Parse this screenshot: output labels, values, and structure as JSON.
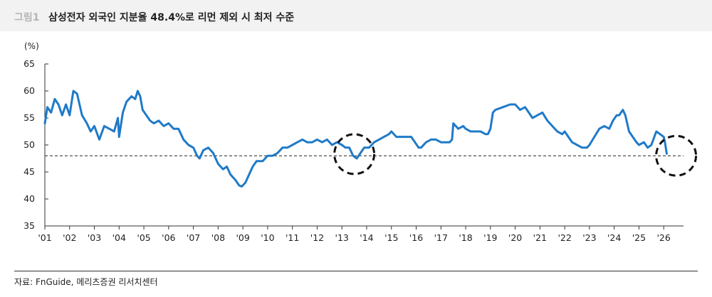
{
  "header": {
    "figure_no": "그림1",
    "title": "삼성전자 외국인 지분율 48.4%로 리먼 제외 시 최저 수준"
  },
  "footer": {
    "source": "자료: FnGuide, 메리츠증권 리서치센터"
  },
  "colors": {
    "series": "#1f7ac8",
    "reference": "#222222",
    "axis": "#333333",
    "highlight": "#111111"
  },
  "chart_data": {
    "type": "line",
    "ylabel": "(%)",
    "ylim": [
      35,
      65
    ],
    "yticks": [
      35,
      40,
      45,
      50,
      55,
      60,
      65
    ],
    "xlim": [
      2001,
      2026.8
    ],
    "xtick_labels": [
      "'01",
      "'02",
      "'03",
      "'04",
      "'05",
      "'06",
      "'07",
      "'08",
      "'09",
      "'10",
      "'11",
      "'12",
      "'13",
      "'14",
      "'15",
      "'16",
      "'17",
      "'18",
      "'19",
      "'20",
      "'21",
      "'22",
      "'23",
      "'24",
      "'25",
      "'26"
    ],
    "grid": false,
    "reference_line": {
      "y": 48.0,
      "style": "dashed"
    },
    "highlights": [
      {
        "shape": "dashed-circle",
        "x": 2013.5,
        "y": 48.3
      },
      {
        "shape": "dashed-circle",
        "x": 2026.5,
        "y": 48.0
      }
    ],
    "series": [
      {
        "name": "",
        "points": [
          [
            2001.0,
            54.0
          ],
          [
            2001.1,
            57.0
          ],
          [
            2001.25,
            56.0
          ],
          [
            2001.4,
            58.5
          ],
          [
            2001.55,
            57.5
          ],
          [
            2001.7,
            55.5
          ],
          [
            2001.85,
            57.5
          ],
          [
            2002.0,
            55.5
          ],
          [
            2002.15,
            60.0
          ],
          [
            2002.3,
            59.5
          ],
          [
            2002.5,
            55.5
          ],
          [
            2002.7,
            54.0
          ],
          [
            2002.85,
            52.5
          ],
          [
            2003.0,
            53.5
          ],
          [
            2003.2,
            51.0
          ],
          [
            2003.4,
            53.5
          ],
          [
            2003.6,
            53.0
          ],
          [
            2003.8,
            52.5
          ],
          [
            2003.95,
            55.0
          ],
          [
            2004.0,
            51.5
          ],
          [
            2004.15,
            56.0
          ],
          [
            2004.3,
            58.0
          ],
          [
            2004.5,
            59.0
          ],
          [
            2004.65,
            58.5
          ],
          [
            2004.75,
            60.0
          ],
          [
            2004.85,
            59.0
          ],
          [
            2004.95,
            56.5
          ],
          [
            2005.1,
            55.5
          ],
          [
            2005.25,
            54.5
          ],
          [
            2005.4,
            54.0
          ],
          [
            2005.6,
            54.5
          ],
          [
            2005.8,
            53.5
          ],
          [
            2006.0,
            54.0
          ],
          [
            2006.2,
            53.0
          ],
          [
            2006.4,
            53.0
          ],
          [
            2006.6,
            51.0
          ],
          [
            2006.8,
            50.0
          ],
          [
            2007.0,
            49.5
          ],
          [
            2007.15,
            48.0
          ],
          [
            2007.25,
            47.5
          ],
          [
            2007.4,
            49.0
          ],
          [
            2007.6,
            49.5
          ],
          [
            2007.8,
            48.5
          ],
          [
            2008.0,
            46.5
          ],
          [
            2008.2,
            45.5
          ],
          [
            2008.35,
            46.0
          ],
          [
            2008.5,
            44.5
          ],
          [
            2008.7,
            43.5
          ],
          [
            2008.85,
            42.5
          ],
          [
            2008.95,
            42.3
          ],
          [
            2009.1,
            43.0
          ],
          [
            2009.25,
            44.5
          ],
          [
            2009.4,
            46.0
          ],
          [
            2009.55,
            47.0
          ],
          [
            2009.8,
            47.0
          ],
          [
            2010.0,
            48.0
          ],
          [
            2010.2,
            48.0
          ],
          [
            2010.4,
            48.5
          ],
          [
            2010.6,
            49.5
          ],
          [
            2010.8,
            49.5
          ],
          [
            2011.0,
            50.0
          ],
          [
            2011.2,
            50.5
          ],
          [
            2011.4,
            51.0
          ],
          [
            2011.6,
            50.5
          ],
          [
            2011.8,
            50.5
          ],
          [
            2012.0,
            51.0
          ],
          [
            2012.2,
            50.5
          ],
          [
            2012.4,
            51.0
          ],
          [
            2012.6,
            50.0
          ],
          [
            2012.8,
            50.5
          ],
          [
            2013.0,
            50.0
          ],
          [
            2013.15,
            49.5
          ],
          [
            2013.3,
            49.5
          ],
          [
            2013.45,
            48.0
          ],
          [
            2013.6,
            47.5
          ],
          [
            2013.75,
            48.5
          ],
          [
            2013.9,
            49.5
          ],
          [
            2014.1,
            49.5
          ],
          [
            2014.3,
            50.5
          ],
          [
            2014.5,
            51.0
          ],
          [
            2014.7,
            51.5
          ],
          [
            2014.9,
            52.0
          ],
          [
            2015.0,
            52.5
          ],
          [
            2015.2,
            51.5
          ],
          [
            2015.4,
            51.5
          ],
          [
            2015.6,
            51.5
          ],
          [
            2015.8,
            51.5
          ],
          [
            2015.95,
            50.5
          ],
          [
            2016.1,
            49.5
          ],
          [
            2016.2,
            49.5
          ],
          [
            2016.4,
            50.5
          ],
          [
            2016.6,
            51.0
          ],
          [
            2016.8,
            51.0
          ],
          [
            2017.0,
            50.5
          ],
          [
            2017.2,
            50.5
          ],
          [
            2017.35,
            50.5
          ],
          [
            2017.45,
            51.0
          ],
          [
            2017.5,
            54.0
          ],
          [
            2017.7,
            53.0
          ],
          [
            2017.9,
            53.5
          ],
          [
            2018.0,
            53.0
          ],
          [
            2018.2,
            52.5
          ],
          [
            2018.4,
            52.5
          ],
          [
            2018.6,
            52.5
          ],
          [
            2018.8,
            52.0
          ],
          [
            2018.9,
            52.0
          ],
          [
            2019.0,
            53.0
          ],
          [
            2019.1,
            56.0
          ],
          [
            2019.2,
            56.5
          ],
          [
            2019.5,
            57.0
          ],
          [
            2019.8,
            57.5
          ],
          [
            2020.0,
            57.5
          ],
          [
            2020.2,
            56.5
          ],
          [
            2020.4,
            57.0
          ],
          [
            2020.55,
            56.0
          ],
          [
            2020.7,
            55.0
          ],
          [
            2020.9,
            55.5
          ],
          [
            2021.1,
            56.0
          ],
          [
            2021.3,
            54.5
          ],
          [
            2021.5,
            53.5
          ],
          [
            2021.7,
            52.5
          ],
          [
            2021.9,
            52.0
          ],
          [
            2022.0,
            52.5
          ],
          [
            2022.15,
            51.5
          ],
          [
            2022.3,
            50.5
          ],
          [
            2022.5,
            50.0
          ],
          [
            2022.7,
            49.5
          ],
          [
            2022.9,
            49.5
          ],
          [
            2023.0,
            50.0
          ],
          [
            2023.2,
            51.5
          ],
          [
            2023.4,
            53.0
          ],
          [
            2023.6,
            53.5
          ],
          [
            2023.8,
            53.0
          ],
          [
            2023.95,
            54.5
          ],
          [
            2024.1,
            55.5
          ],
          [
            2024.2,
            55.5
          ],
          [
            2024.35,
            56.5
          ],
          [
            2024.45,
            55.5
          ],
          [
            2024.6,
            52.5
          ],
          [
            2024.75,
            51.5
          ],
          [
            2024.9,
            50.5
          ],
          [
            2025.0,
            50.0
          ],
          [
            2025.2,
            50.5
          ],
          [
            2025.35,
            49.5
          ],
          [
            2025.5,
            50.0
          ],
          [
            2025.7,
            52.5
          ],
          [
            2025.85,
            52.0
          ],
          [
            2026.0,
            51.5
          ],
          [
            2026.05,
            50.5
          ],
          [
            2026.12,
            48.4
          ]
        ]
      }
    ]
  }
}
